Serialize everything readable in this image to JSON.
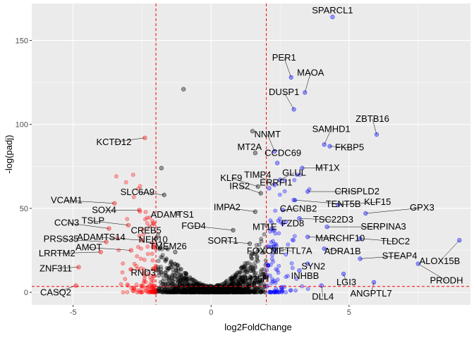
{
  "chart_data": {
    "type": "scatter",
    "title": "",
    "xlabel": "log2FoldChange",
    "ylabel": "-log(padj)",
    "xlim": [
      -6.5,
      9.4
    ],
    "ylim": [
      -7.5,
      172
    ],
    "x_ticks": [
      -5,
      0,
      5
    ],
    "y_ticks": [
      0,
      50,
      100,
      150
    ],
    "grid": true,
    "background": "#ebebeb",
    "thresholds": {
      "fc_lines": [
        -2,
        2
      ],
      "padj_line": 3.5,
      "line_color": "#ff0000",
      "line_style": "dashed"
    },
    "colors": {
      "down": "#ff0000",
      "up": "#0000ff",
      "ns": "#000000"
    },
    "highlighted_points": [
      {
        "gene": "SPARCL1",
        "x": 4.4,
        "y": 164,
        "group": "up"
      },
      {
        "gene": "PER1",
        "x": 2.9,
        "y": 128,
        "group": "up"
      },
      {
        "gene": "MAOA",
        "x": 3.4,
        "y": 119,
        "group": "up"
      },
      {
        "gene": "DUSP1",
        "x": 3.0,
        "y": 109,
        "group": "up"
      },
      {
        "gene": "ZBTB16",
        "x": 6.0,
        "y": 94,
        "group": "up"
      },
      {
        "gene": "SAMHD1",
        "x": 4.1,
        "y": 88,
        "group": "up"
      },
      {
        "gene": "FKBP5",
        "x": 4.3,
        "y": 87,
        "group": "up"
      },
      {
        "gene": "NNMT",
        "x": 2.3,
        "y": 84,
        "group": "up"
      },
      {
        "gene": "MT2A",
        "x": 1.6,
        "y": 83,
        "group": "ns"
      },
      {
        "gene": "CCDC69",
        "x": 2.4,
        "y": 77,
        "group": "up"
      },
      {
        "gene": "MT1X",
        "x": 3.3,
        "y": 74,
        "group": "up"
      },
      {
        "gene": "KCTD12",
        "x": -2.4,
        "y": 92,
        "group": "down"
      },
      {
        "gene": "TIMP4",
        "x": 2.3,
        "y": 64,
        "group": "up"
      },
      {
        "gene": "GLUL",
        "x": 2.5,
        "y": 67,
        "group": "up"
      },
      {
        "gene": "CRISPLD2",
        "x": 3.5,
        "y": 60,
        "group": "up"
      },
      {
        "gene": "KLF9",
        "x": 1.7,
        "y": 63,
        "group": "ns"
      },
      {
        "gene": "ERRFI1",
        "x": 2.1,
        "y": 62,
        "group": "up"
      },
      {
        "gene": "IRS2",
        "x": 1.8,
        "y": 59,
        "group": "ns"
      },
      {
        "gene": "TENT5B",
        "x": 3.0,
        "y": 55,
        "group": "up"
      },
      {
        "gene": "SLC6A9",
        "x": -1.7,
        "y": 58,
        "group": "ns"
      },
      {
        "gene": "KLF15",
        "x": 4.6,
        "y": 52,
        "group": "up"
      },
      {
        "gene": "GPX3",
        "x": 5.6,
        "y": 47,
        "group": "up"
      },
      {
        "gene": "CACNB2",
        "x": 2.6,
        "y": 49,
        "group": "up"
      },
      {
        "gene": "VCAM1",
        "x": -3.5,
        "y": 53,
        "group": "down"
      },
      {
        "gene": "SOX4",
        "x": -2.6,
        "y": 49,
        "group": "down"
      },
      {
        "gene": "ADAMTS1",
        "x": -1.2,
        "y": 47,
        "group": "ns"
      },
      {
        "gene": "IMPA2",
        "x": 1.6,
        "y": 48,
        "group": "ns"
      },
      {
        "gene": "ALOX15B",
        "x": 9.0,
        "y": 31,
        "group": "up"
      },
      {
        "gene": "TSC22D3",
        "x": 3.2,
        "y": 44,
        "group": "up"
      },
      {
        "gene": "FZD8",
        "x": 2.6,
        "y": 41,
        "group": "up"
      },
      {
        "gene": "SERPINA3",
        "x": 4.2,
        "y": 39,
        "group": "up"
      },
      {
        "gene": "CREB5",
        "x": -2.1,
        "y": 41,
        "group": "down"
      },
      {
        "gene": "TSLP",
        "x": -3.0,
        "y": 40,
        "group": "down"
      },
      {
        "gene": "MT1E",
        "x": 2.2,
        "y": 38,
        "group": "up"
      },
      {
        "gene": "FGD4",
        "x": 0.8,
        "y": 37,
        "group": "ns"
      },
      {
        "gene": "CCN3",
        "x": -3.7,
        "y": 38,
        "group": "down"
      },
      {
        "gene": "MARCHF10",
        "x": 3.5,
        "y": 33,
        "group": "up"
      },
      {
        "gene": "TLDC2",
        "x": 5.4,
        "y": 32,
        "group": "up"
      },
      {
        "gene": "ADAMTS14",
        "x": -2.5,
        "y": 31,
        "group": "down"
      },
      {
        "gene": "PRSS35",
        "x": -3.8,
        "y": 30,
        "group": "down"
      },
      {
        "gene": "SORT1",
        "x": 1.4,
        "y": 29,
        "group": "ns"
      },
      {
        "gene": "NEK10",
        "x": -2.1,
        "y": 27,
        "group": "down"
      },
      {
        "gene": "METTL7A",
        "x": 2.2,
        "y": 27,
        "group": "up"
      },
      {
        "gene": "ADRA1B",
        "x": 4.1,
        "y": 26,
        "group": "up"
      },
      {
        "gene": "AMOT",
        "x": -2.9,
        "y": 25,
        "group": "down"
      },
      {
        "gene": "LRRTM2",
        "x": -4.0,
        "y": 24,
        "group": "down"
      },
      {
        "gene": "TMEM26",
        "x": -1.3,
        "y": 24,
        "group": "ns"
      },
      {
        "gene": "FOXO1",
        "x": 1.6,
        "y": 23,
        "group": "ns"
      },
      {
        "gene": "STEAP4",
        "x": 5.4,
        "y": 20,
        "group": "up"
      },
      {
        "gene": "SYN2",
        "x": 3.5,
        "y": 17,
        "group": "up"
      },
      {
        "gene": "PRODH",
        "x": 7.5,
        "y": 17,
        "group": "up"
      },
      {
        "gene": "ZNF311",
        "x": -4.8,
        "y": 15,
        "group": "down"
      },
      {
        "gene": "RND3",
        "x": -2.1,
        "y": 14,
        "group": "down"
      },
      {
        "gene": "CH25H",
        "x": 1.3,
        "y": 12,
        "group": "ns"
      },
      {
        "gene": "INHBB",
        "x": 3.2,
        "y": 13,
        "group": "up"
      },
      {
        "gene": "LGI3",
        "x": 4.8,
        "y": 11,
        "group": "up"
      },
      {
        "gene": "ANGPTL7",
        "x": 5.9,
        "y": 6,
        "group": "up"
      },
      {
        "gene": "CASQ2",
        "x": -4.9,
        "y": 4,
        "group": "down"
      },
      {
        "gene": "DLL4",
        "x": 4.0,
        "y": 4,
        "group": "up"
      },
      {
        "gene": "",
        "x": -1.0,
        "y": 121,
        "group": "ns"
      },
      {
        "gene": "",
        "x": 1.5,
        "y": 96,
        "group": "ns"
      },
      {
        "gene": "",
        "x": -1.8,
        "y": 74,
        "group": "ns"
      }
    ]
  }
}
